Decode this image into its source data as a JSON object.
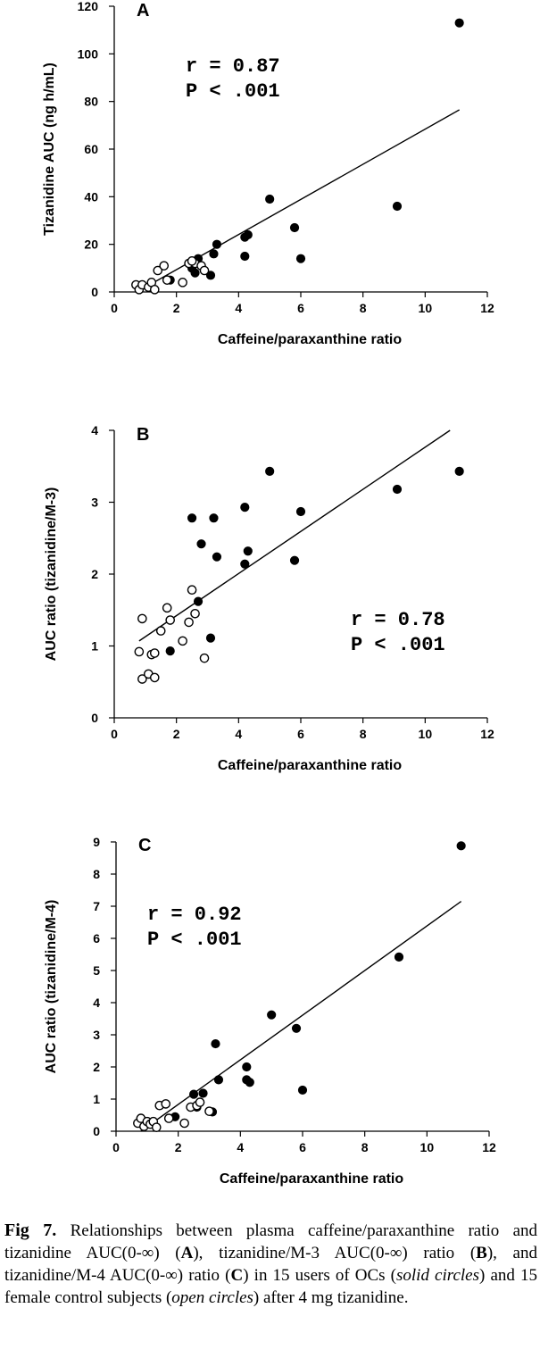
{
  "chart_data": [
    {
      "type": "scatter",
      "panel": "A",
      "xlabel": "Caffeine/paraxanthine ratio",
      "ylabel": "Tizanidine AUC (ng h/mL)",
      "xlim": [
        0,
        12
      ],
      "ylim": [
        0,
        120
      ],
      "xticks": [
        0,
        2,
        4,
        6,
        8,
        10,
        12
      ],
      "yticks": [
        0,
        20,
        40,
        60,
        80,
        100,
        120
      ],
      "annotation": [
        "r  =  0.87",
        "P  <  .001"
      ],
      "regression_line": {
        "x": [
          0.8,
          11.1
        ],
        "y": [
          0.5,
          76.5
        ]
      },
      "series": [
        {
          "marker": "filled",
          "points": [
            [
              1.8,
              5
            ],
            [
              2.5,
              10
            ],
            [
              2.6,
              8
            ],
            [
              2.7,
              14
            ],
            [
              3.1,
              7
            ],
            [
              3.2,
              16
            ],
            [
              3.3,
              20
            ],
            [
              4.2,
              23
            ],
            [
              4.2,
              15
            ],
            [
              4.3,
              24
            ],
            [
              5.0,
              39
            ],
            [
              5.8,
              27
            ],
            [
              6.0,
              14
            ],
            [
              9.1,
              36
            ],
            [
              11.1,
              113
            ]
          ]
        },
        {
          "marker": "open",
          "points": [
            [
              0.7,
              3
            ],
            [
              0.8,
              1
            ],
            [
              0.9,
              3
            ],
            [
              1.1,
              2
            ],
            [
              1.2,
              4
            ],
            [
              1.3,
              1
            ],
            [
              1.4,
              9
            ],
            [
              1.6,
              11
            ],
            [
              1.7,
              5
            ],
            [
              2.2,
              4
            ],
            [
              2.4,
              12
            ],
            [
              2.6,
              12
            ],
            [
              2.8,
              11
            ],
            [
              2.9,
              9
            ],
            [
              2.5,
              13
            ]
          ]
        }
      ]
    },
    {
      "type": "scatter",
      "panel": "B",
      "xlabel": "Caffeine/paraxanthine ratio",
      "ylabel": "AUC ratio (tizanidine/M-3)",
      "xlim": [
        0,
        12
      ],
      "ylim": [
        0,
        4
      ],
      "xticks": [
        0,
        2,
        4,
        6,
        8,
        10,
        12
      ],
      "yticks": [
        0,
        1,
        2,
        3,
        4
      ],
      "annotation": [
        "r  =  0.78",
        "P  <  .001"
      ],
      "regression_line": {
        "x": [
          0.8,
          10.8
        ],
        "y": [
          1.07,
          4.0
        ]
      },
      "series": [
        {
          "marker": "filled",
          "points": [
            [
              1.8,
              0.93
            ],
            [
              2.5,
              2.78
            ],
            [
              2.7,
              1.62
            ],
            [
              2.8,
              2.42
            ],
            [
              3.1,
              1.11
            ],
            [
              3.2,
              2.78
            ],
            [
              3.3,
              2.24
            ],
            [
              4.2,
              2.93
            ],
            [
              4.2,
              2.14
            ],
            [
              4.3,
              2.32
            ],
            [
              5.0,
              3.43
            ],
            [
              5.8,
              2.19
            ],
            [
              6.0,
              2.87
            ],
            [
              9.1,
              3.18
            ],
            [
              11.1,
              3.43
            ]
          ]
        },
        {
          "marker": "open",
          "points": [
            [
              0.8,
              0.92
            ],
            [
              0.9,
              1.38
            ],
            [
              0.9,
              0.54
            ],
            [
              1.1,
              0.61
            ],
            [
              1.2,
              0.88
            ],
            [
              1.3,
              0.9
            ],
            [
              1.3,
              0.56
            ],
            [
              1.5,
              1.21
            ],
            [
              1.7,
              1.53
            ],
            [
              1.8,
              1.36
            ],
            [
              2.2,
              1.07
            ],
            [
              2.4,
              1.33
            ],
            [
              2.5,
              1.78
            ],
            [
              2.6,
              1.45
            ],
            [
              2.9,
              0.83
            ]
          ]
        }
      ]
    },
    {
      "type": "scatter",
      "panel": "C",
      "xlabel": "Caffeine/paraxanthine ratio",
      "ylabel": "AUC ratio (tizanidine/M-4)",
      "xlim": [
        0,
        12
      ],
      "ylim": [
        0,
        9
      ],
      "xticks": [
        0,
        2,
        4,
        6,
        8,
        10,
        12
      ],
      "yticks": [
        0,
        1,
        2,
        3,
        4,
        5,
        6,
        7,
        8,
        9
      ],
      "annotation": [
        "r  =  0.92",
        "P  <  .001"
      ],
      "regression_line": {
        "x": [
          0.8,
          11.1
        ],
        "y": [
          0.0,
          7.15
        ]
      },
      "series": [
        {
          "marker": "filled",
          "points": [
            [
              1.9,
              0.45
            ],
            [
              2.5,
              1.15
            ],
            [
              2.6,
              0.75
            ],
            [
              2.8,
              1.18
            ],
            [
              3.1,
              0.6
            ],
            [
              3.2,
              2.72
            ],
            [
              3.3,
              1.6
            ],
            [
              4.2,
              2.0
            ],
            [
              4.2,
              1.6
            ],
            [
              4.3,
              1.52
            ],
            [
              5.0,
              3.62
            ],
            [
              5.8,
              3.2
            ],
            [
              6.0,
              1.28
            ],
            [
              9.1,
              5.42
            ],
            [
              11.1,
              8.88
            ]
          ]
        },
        {
          "marker": "open",
          "points": [
            [
              0.7,
              0.25
            ],
            [
              0.8,
              0.4
            ],
            [
              0.9,
              0.15
            ],
            [
              1.0,
              0.3
            ],
            [
              1.1,
              0.22
            ],
            [
              1.2,
              0.3
            ],
            [
              1.3,
              0.12
            ],
            [
              1.4,
              0.8
            ],
            [
              1.6,
              0.85
            ],
            [
              1.7,
              0.4
            ],
            [
              2.2,
              0.25
            ],
            [
              2.4,
              0.75
            ],
            [
              2.6,
              0.8
            ],
            [
              2.7,
              0.9
            ],
            [
              3.0,
              0.62
            ]
          ]
        }
      ]
    }
  ],
  "caption": {
    "fig_num": "Fig 7.",
    "text_1": " Relationships between plasma caffeine/paraxanthine ratio and tizanidine AUC(0-∞) (",
    "label_a": "A",
    "text_2": "), tizanidine/M-3 AUC(0-∞) ratio (",
    "label_b": "B",
    "text_3": "), and tizanidine/M-4 AUC(0-∞) ratio (",
    "label_c": "C",
    "text_4": ") in 15 users of OCs (",
    "solid": "solid circles",
    "text_5": ") and 15 female control subjects (",
    "open": "open circles",
    "text_6": ") after 4 mg tizanidine."
  }
}
